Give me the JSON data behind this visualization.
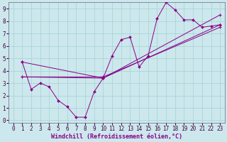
{
  "xlabel": "Windchill (Refroidissement éolien,°C)",
  "background_color": "#cce8ec",
  "grid_color": "#aad4d8",
  "line_color": "#880088",
  "xlim": [
    -0.5,
    23.5
  ],
  "ylim": [
    -0.2,
    9.5
  ],
  "xticks": [
    0,
    1,
    2,
    3,
    4,
    5,
    6,
    7,
    8,
    9,
    10,
    11,
    12,
    13,
    14,
    15,
    16,
    17,
    18,
    19,
    20,
    21,
    22,
    23
  ],
  "yticks": [
    0,
    1,
    2,
    3,
    4,
    5,
    6,
    7,
    8,
    9
  ],
  "line1_x": [
    1,
    2,
    3,
    4,
    5,
    6,
    7,
    8,
    9,
    10,
    11,
    12,
    13,
    14,
    15,
    16,
    17,
    18,
    19,
    20,
    21,
    22,
    23
  ],
  "line1_y": [
    4.7,
    2.5,
    3.0,
    2.7,
    1.6,
    1.1,
    0.25,
    0.25,
    2.3,
    3.4,
    5.2,
    6.5,
    6.7,
    4.3,
    5.2,
    8.2,
    9.5,
    8.9,
    8.1,
    8.1,
    7.5,
    7.6,
    7.7
  ],
  "line2_x": [
    1,
    10,
    23
  ],
  "line2_y": [
    3.5,
    3.5,
    7.5
  ],
  "line3_x": [
    1,
    10,
    23
  ],
  "line3_y": [
    3.5,
    3.4,
    8.5
  ],
  "line4_x": [
    1,
    10,
    23
  ],
  "line4_y": [
    4.7,
    3.4,
    7.7
  ],
  "xlabel_fontsize": 6,
  "tick_fontsize": 5.5
}
